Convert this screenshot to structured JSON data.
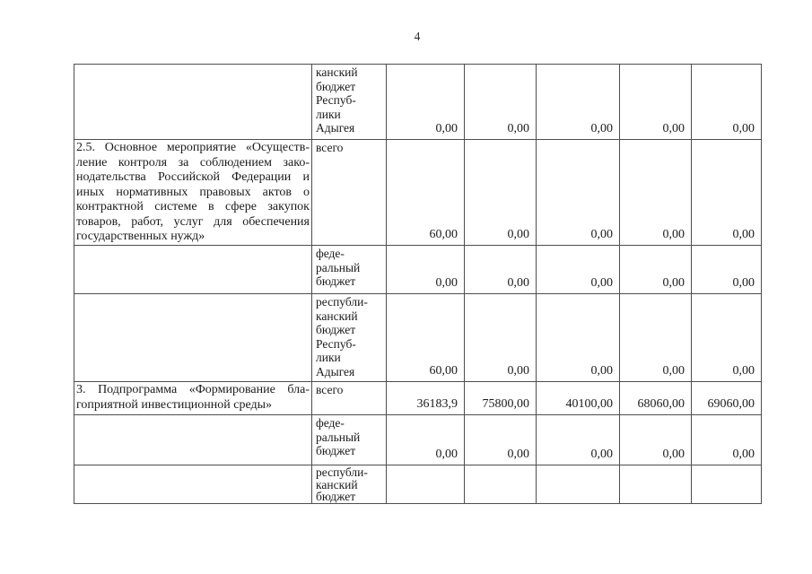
{
  "page": {
    "number": "4"
  },
  "table": {
    "rows": [
      {
        "description": "",
        "budget_type": "канский\nбюджет\nРеспуб-\nлики\nАдыгея",
        "values": [
          "0,00",
          "0,00",
          "0,00",
          "0,00",
          "0,00"
        ]
      },
      {
        "description": "2.5. Основное мероприятие «Осуществ-\nление контроля за соблюдением зако-\nнодательства Российской Федерации и\nиных нормативных правовых актов о\nконтрактной системе в сфере закупок\nтоваров, работ, услуг для обеспечения\nгосударственных нужд»",
        "budget_type": "всего",
        "values": [
          "60,00",
          "0,00",
          "0,00",
          "0,00",
          "0,00"
        ]
      },
      {
        "description": "",
        "budget_type": "феде-\nральный\nбюджет",
        "values": [
          "0,00",
          "0,00",
          "0,00",
          "0,00",
          "0,00"
        ]
      },
      {
        "description": "",
        "budget_type": "республи-\nканский\nбюджет\nРеспуб-\nлики\nАдыгея",
        "values": [
          "60,00",
          "0,00",
          "0,00",
          "0,00",
          "0,00"
        ]
      },
      {
        "description": "3. Подпрограмма «Формирование бла-\nгоприятной инвестиционной среды»",
        "budget_type": "всего",
        "values": [
          "36183,9",
          "75800,00",
          "40100,00",
          "68060,00",
          "69060,00"
        ]
      },
      {
        "description": "",
        "budget_type": "феде-\nральный\nбюджет",
        "values": [
          "0,00",
          "0,00",
          "0,00",
          "0,00",
          "0,00"
        ]
      },
      {
        "description": "",
        "budget_type": "республи-\nканский\nбюджет",
        "values": [
          "",
          "",
          "",
          "",
          ""
        ]
      }
    ]
  }
}
